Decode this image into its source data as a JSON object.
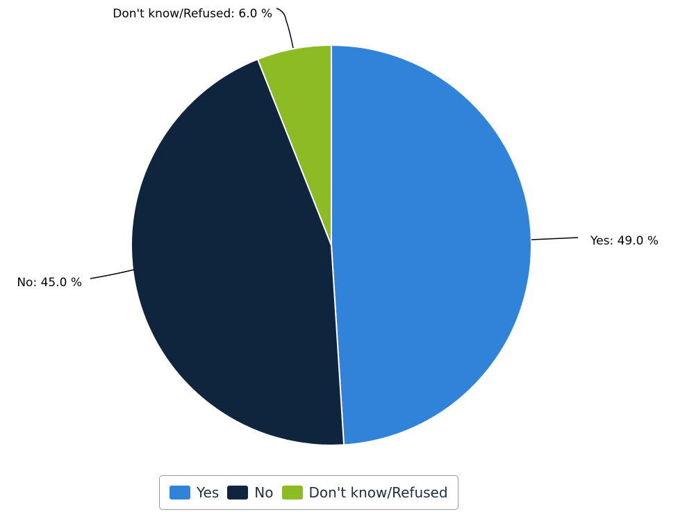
{
  "chart_data": {
    "type": "pie",
    "slices": [
      {
        "name": "Yes",
        "value": 49.0,
        "label": "Yes: 49.0 %",
        "color": "#3182d9"
      },
      {
        "name": "No",
        "value": 45.0,
        "label": "No: 45.0 %",
        "color": "#0f243d"
      },
      {
        "name": "Don't know/Refused",
        "value": 6.0,
        "label": "Don't know/Refused: 6.0 %",
        "color": "#8cbb23"
      }
    ],
    "legend": {
      "placement": "bottom",
      "items": [
        "Yes",
        "No",
        "Don't know/Refused"
      ]
    }
  }
}
